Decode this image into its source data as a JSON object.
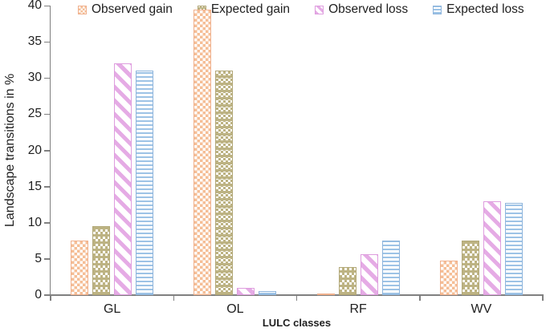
{
  "chart_data": {
    "type": "bar",
    "title": "",
    "xlabel": "LULC classes",
    "ylabel": "Landscape transitions in %",
    "ylim": [
      0,
      40
    ],
    "yticks": [
      0,
      5,
      10,
      15,
      20,
      25,
      30,
      35,
      40
    ],
    "grid": false,
    "legend_position": "top",
    "categories": [
      "GL",
      "OL",
      "RF",
      "WV"
    ],
    "series": [
      {
        "name": "Observed gain",
        "pattern": "checker-small",
        "color": "#F5BE96",
        "border": "#F0B08C",
        "values": [
          7.5,
          39.4,
          0.2,
          4.8
        ]
      },
      {
        "name": "Expected gain",
        "pattern": "checker-large",
        "color": "#BDB383",
        "border": "#B2A878",
        "values": [
          9.5,
          31.0,
          3.9,
          7.5
        ]
      },
      {
        "name": "Observed loss",
        "pattern": "diagonal-stripes",
        "color": "#E5ABE5",
        "border": "#DE9DDE",
        "values": [
          32.0,
          1.0,
          5.6,
          13.0
        ]
      },
      {
        "name": "Expected loss",
        "pattern": "horizontal-lines",
        "color": "#9DC3E6",
        "border": "#8FB5DC",
        "values": [
          31.0,
          0.6,
          7.5,
          12.7
        ]
      }
    ],
    "axis_color": "#808080",
    "text_color": "#1f1f1f"
  }
}
